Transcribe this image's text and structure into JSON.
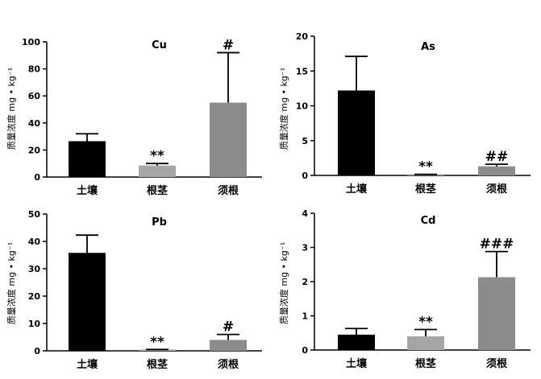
{
  "chart_data": [
    {
      "type": "bar",
      "title": "Cu",
      "ylabel": "质量浓度 mg • kg⁻¹",
      "categories": [
        "土壤",
        "根茎",
        "须根"
      ],
      "values": [
        26.5,
        8.5,
        55.0
      ],
      "errors": [
        5.5,
        1.5,
        37.0
      ],
      "annotations": [
        "",
        "**",
        "#"
      ],
      "ylim": [
        0,
        100
      ],
      "yticks": [
        "0",
        "20",
        "40",
        "60",
        "80",
        "100"
      ],
      "bar_colors": [
        "#000000",
        "#a6a6a6",
        "#8c8c8c"
      ]
    },
    {
      "type": "bar",
      "title": "As",
      "ylabel": "质量浓度 mg • kg⁻¹",
      "categories": [
        "土壤",
        "根茎",
        "须根"
      ],
      "values": [
        12.2,
        0.1,
        1.3
      ],
      "errors": [
        4.9,
        0.05,
        0.3
      ],
      "annotations": [
        "",
        "**",
        "##"
      ],
      "ylim": [
        0,
        20
      ],
      "yticks": [
        "0",
        "5",
        "10",
        "15",
        "20"
      ],
      "bar_colors": [
        "#000000",
        "#a6a6a6",
        "#8c8c8c"
      ]
    },
    {
      "type": "bar",
      "title": "Pb",
      "ylabel": "质量浓度 mg • kg⁻¹",
      "categories": [
        "土壤",
        "根茎",
        "须根"
      ],
      "values": [
        35.8,
        0.3,
        4.0
      ],
      "errors": [
        6.5,
        0.2,
        2.0
      ],
      "annotations": [
        "",
        "**",
        "#"
      ],
      "ylim": [
        0,
        50
      ],
      "yticks": [
        "0",
        "10",
        "20",
        "30",
        "40",
        "50"
      ],
      "bar_colors": [
        "#000000",
        "#a6a6a6",
        "#8c8c8c"
      ]
    },
    {
      "type": "bar",
      "title": "Cd",
      "ylabel": "质量浓度 mg • kg⁻¹",
      "categories": [
        "土壤",
        "根茎",
        "须根"
      ],
      "values": [
        0.45,
        0.4,
        2.13
      ],
      "errors": [
        0.18,
        0.2,
        0.75
      ],
      "annotations": [
        "",
        "**",
        "###"
      ],
      "ylim": [
        0,
        4
      ],
      "yticks": [
        "0",
        "1",
        "2",
        "3",
        "4"
      ],
      "bar_colors": [
        "#000000",
        "#a6a6a6",
        "#8c8c8c"
      ]
    }
  ]
}
